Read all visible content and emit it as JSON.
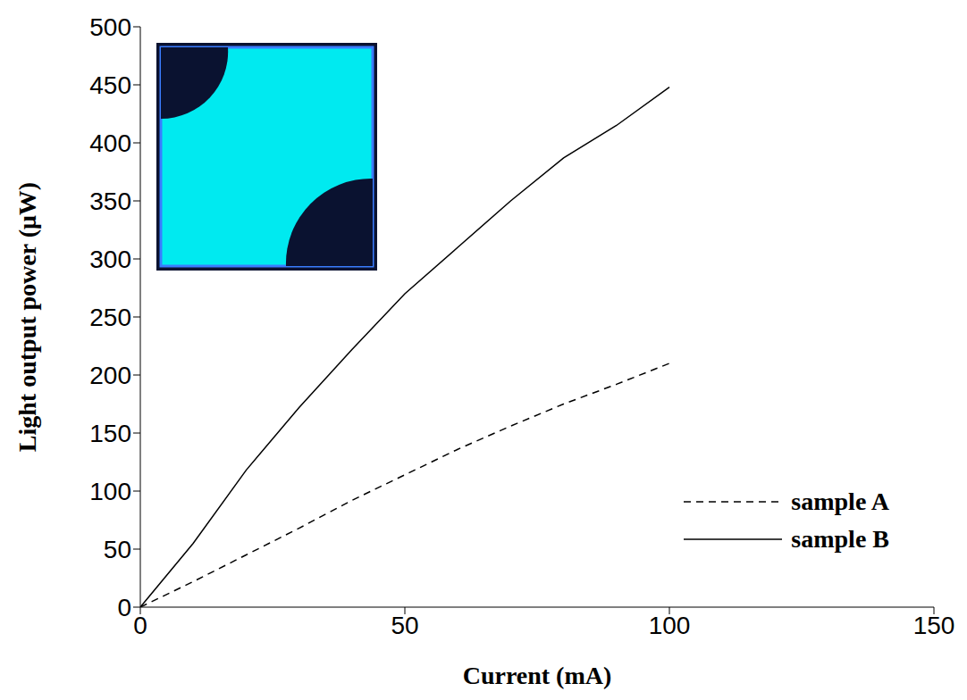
{
  "chart_data": {
    "type": "line",
    "x_label": "Current (mA)",
    "y_label": "Light output power (μW)",
    "x": [
      0,
      10,
      20,
      30,
      40,
      50,
      60,
      70,
      80,
      90,
      100
    ],
    "series": [
      {
        "name": "sample A",
        "color": "#000000",
        "line_style": "dashed",
        "values": [
          0,
          22,
          45,
          68,
          92,
          114,
          136,
          156,
          175,
          192,
          210
        ]
      },
      {
        "name": "sample B",
        "color": "#000000",
        "line_style": "solid",
        "values": [
          0,
          55,
          118,
          172,
          222,
          270,
          310,
          350,
          387,
          415,
          448
        ]
      }
    ],
    "xlim": [
      0,
      150
    ],
    "xticks": [
      0,
      50,
      100,
      150
    ],
    "ylim": [
      0,
      500
    ],
    "yticks": [
      0,
      50,
      100,
      150,
      200,
      250,
      300,
      350,
      400,
      450,
      500
    ],
    "legend": "lower right",
    "grid": false
  }
}
